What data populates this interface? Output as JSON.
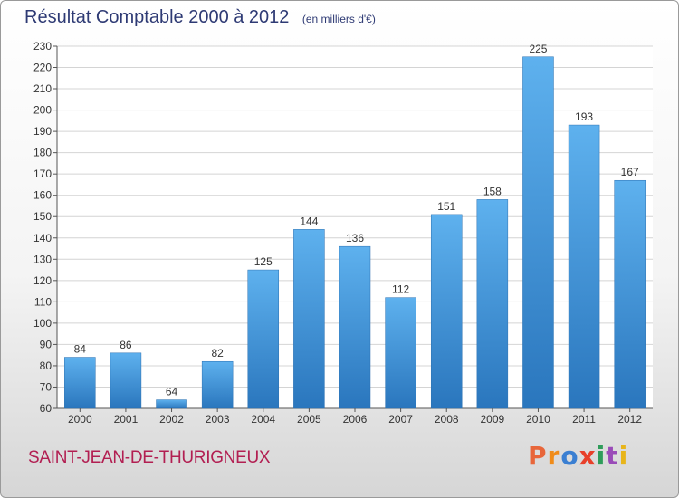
{
  "chart_data": {
    "type": "bar",
    "title": "Résultat Comptable 2000 à 2012",
    "unit": "(en milliers d'€)",
    "categories": [
      "2000",
      "2001",
      "2002",
      "2003",
      "2004",
      "2005",
      "2006",
      "2007",
      "2008",
      "2009",
      "2010",
      "2011",
      "2012"
    ],
    "values": [
      84,
      86,
      64,
      82,
      125,
      144,
      136,
      112,
      151,
      158,
      225,
      193,
      167
    ],
    "ylim": [
      60,
      230
    ],
    "yticks": [
      60,
      70,
      80,
      90,
      100,
      110,
      120,
      130,
      140,
      150,
      160,
      170,
      180,
      190,
      200,
      210,
      220,
      230
    ],
    "grid": true,
    "bar_color": "#3d90d6"
  },
  "footer": {
    "commune": "SAINT-JEAN-DE-THURIGNEUX",
    "logo": "Proxiti",
    "logo_colors": [
      "#e8663a",
      "#f08c1a",
      "#3a7fd2",
      "#e8402a",
      "#2f9c5a",
      "#9a4bb8",
      "#e8b51a"
    ]
  }
}
